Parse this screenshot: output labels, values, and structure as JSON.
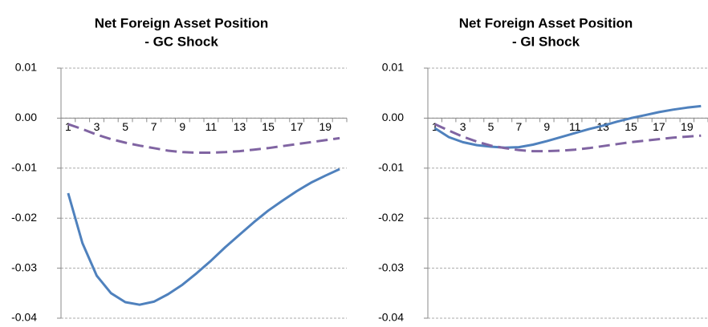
{
  "chart_data": [
    {
      "type": "line",
      "title": [
        "Net Foreign Asset Position",
        "- GC Shock"
      ],
      "categories": [
        1,
        null,
        3,
        null,
        5,
        null,
        7,
        null,
        9,
        null,
        11,
        null,
        13,
        null,
        15,
        null,
        17,
        null,
        19,
        null
      ],
      "series": [
        {
          "color": "#4f81bd",
          "dash": false,
          "values": [
            -0.015,
            -0.025,
            -0.0315,
            -0.035,
            -0.0368,
            -0.0373,
            -0.0367,
            -0.0352,
            -0.0333,
            -0.031,
            -0.0285,
            -0.0258,
            -0.0233,
            -0.0208,
            -0.0185,
            -0.0165,
            -0.0146,
            -0.0129,
            -0.0115,
            -0.0102
          ]
        },
        {
          "color": "#8064a2",
          "dash": true,
          "values": [
            -0.0012,
            -0.0022,
            -0.0033,
            -0.0042,
            -0.0049,
            -0.0055,
            -0.006,
            -0.0065,
            -0.0068,
            -0.0069,
            -0.0069,
            -0.0068,
            -0.0066,
            -0.0063,
            -0.006,
            -0.0056,
            -0.0052,
            -0.0048,
            -0.0044,
            -0.004
          ]
        }
      ],
      "ylim": [
        -0.04,
        0.01
      ],
      "yticks": [
        {
          "value": 0.01,
          "label": "0.01"
        },
        {
          "value": 0,
          "label": "0.00"
        },
        {
          "value": -0.01,
          "label": "-0.01"
        },
        {
          "value": -0.02,
          "label": "-0.02"
        },
        {
          "value": -0.03,
          "label": "-0.03"
        },
        {
          "value": -0.04,
          "label": "-0.04"
        }
      ],
      "grid": true
    },
    {
      "type": "line",
      "title": [
        "Net Foreign Asset Position",
        "- GI Shock"
      ],
      "categories": [
        1,
        null,
        3,
        null,
        5,
        null,
        7,
        null,
        9,
        null,
        11,
        null,
        13,
        null,
        15,
        null,
        17,
        null,
        19,
        null
      ],
      "series": [
        {
          "color": "#4f81bd",
          "dash": false,
          "values": [
            -0.002,
            -0.0038,
            -0.0048,
            -0.0054,
            -0.0057,
            -0.0059,
            -0.0058,
            -0.0053,
            -0.0046,
            -0.0038,
            -0.003,
            -0.0022,
            -0.0015,
            -0.0007,
            0,
            0.0006,
            0.0012,
            0.0017,
            0.0021,
            0.0024
          ]
        },
        {
          "color": "#8064a2",
          "dash": true,
          "values": [
            -0.0012,
            -0.0025,
            -0.0037,
            -0.0047,
            -0.0055,
            -0.006,
            -0.0064,
            -0.0066,
            -0.0066,
            -0.0065,
            -0.0063,
            -0.006,
            -0.0056,
            -0.0052,
            -0.0048,
            -0.0045,
            -0.0042,
            -0.0039,
            -0.0037,
            -0.0035
          ]
        }
      ],
      "ylim": [
        -0.04,
        0.01
      ],
      "yticks": [
        {
          "value": 0.01,
          "label": "0.01"
        },
        {
          "value": 0,
          "label": "0.00"
        },
        {
          "value": -0.01,
          "label": "-0.01"
        },
        {
          "value": -0.02,
          "label": "-0.02"
        },
        {
          "value": -0.03,
          "label": "-0.03"
        },
        {
          "value": -0.04,
          "label": "-0.04"
        }
      ],
      "grid": true
    }
  ]
}
